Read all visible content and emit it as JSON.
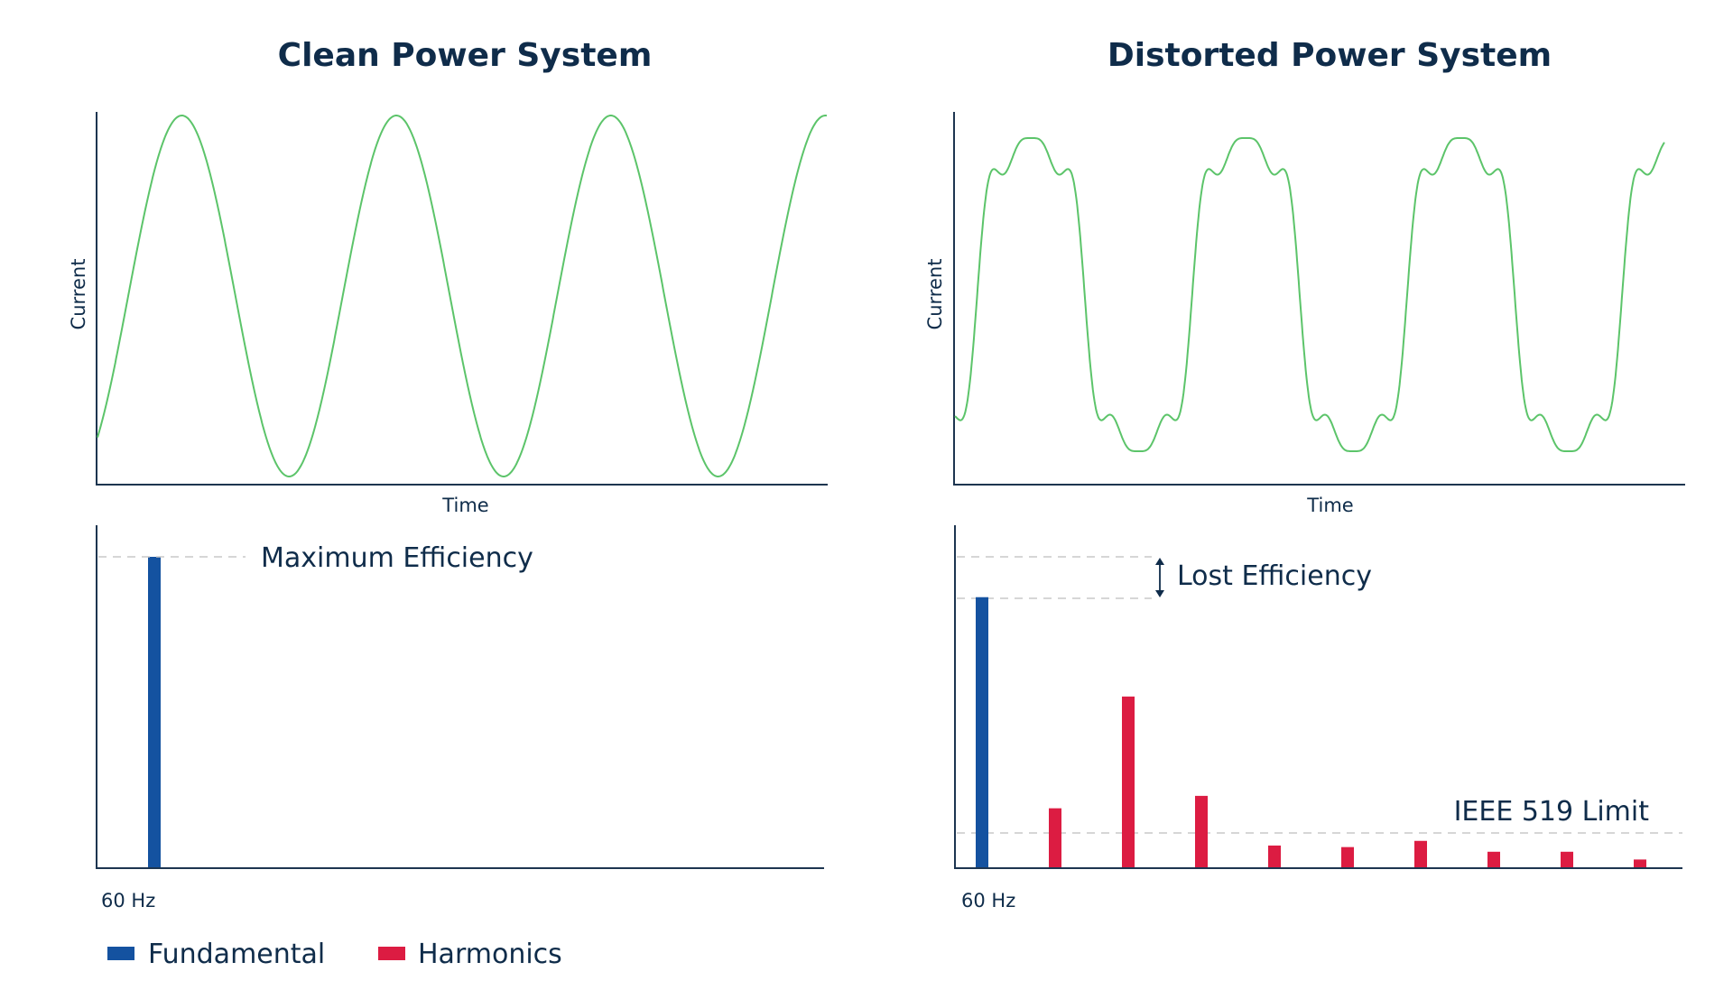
{
  "colors": {
    "wave": "#5cc46a",
    "fundamental": "#1452a0",
    "harmonics": "#dc1c42"
  },
  "legend": {
    "items": [
      {
        "key": "fundamental",
        "label": "Fundamental"
      },
      {
        "key": "harmonics",
        "label": "Harmonics"
      }
    ]
  },
  "chart_data": [
    {
      "id": "clean-waveform",
      "type": "line",
      "title": "Clean Power System",
      "xlabel": "Time",
      "ylabel": "Current",
      "waveform": "pure-sine",
      "cycles": 3.4,
      "harmonic_amplitudes": {
        "1": 1.0
      }
    },
    {
      "id": "clean-spectrum",
      "type": "bar",
      "xlabel": "60 Hz",
      "annotation": "Maximum Efficiency",
      "ylim": [
        0,
        100
      ],
      "bars": [
        {
          "kind": "fundamental",
          "value": 100
        }
      ]
    },
    {
      "id": "distorted-waveform",
      "type": "line",
      "title": "Distorted Power System",
      "xlabel": "Time",
      "ylabel": "Current",
      "waveform": "distorted",
      "cycles": 3.3,
      "harmonic_amplitudes": {
        "1": 1.0,
        "3": 0.18,
        "5": 0.14,
        "7": 0.06
      }
    },
    {
      "id": "distorted-spectrum",
      "type": "bar",
      "xlabel": "60 Hz",
      "ylim": [
        0,
        100
      ],
      "max_reference": 100,
      "annotation_loss": "Lost Efficiency",
      "limit_label": "IEEE 519 Limit",
      "limit_value": 12,
      "bars": [
        {
          "kind": "fundamental",
          "value": 87
        },
        {
          "kind": "harmonics",
          "value": 19
        },
        {
          "kind": "harmonics",
          "value": 55
        },
        {
          "kind": "harmonics",
          "value": 23
        },
        {
          "kind": "harmonics",
          "value": 7
        },
        {
          "kind": "harmonics",
          "value": 6.5
        },
        {
          "kind": "harmonics",
          "value": 8.5
        },
        {
          "kind": "harmonics",
          "value": 5
        },
        {
          "kind": "harmonics",
          "value": 5
        },
        {
          "kind": "harmonics",
          "value": 2.5
        }
      ]
    }
  ]
}
